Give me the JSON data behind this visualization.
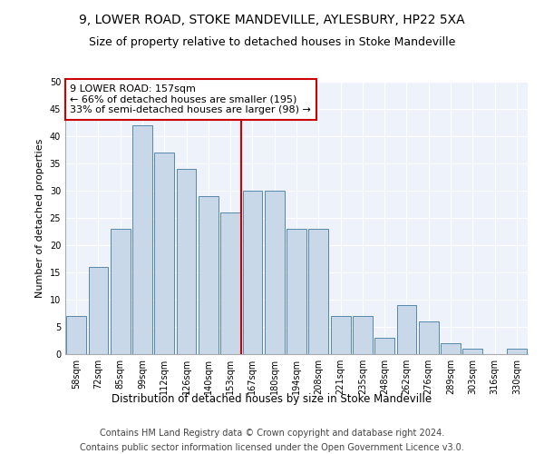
{
  "title_line1": "9, LOWER ROAD, STOKE MANDEVILLE, AYLESBURY, HP22 5XA",
  "title_line2": "Size of property relative to detached houses in Stoke Mandeville",
  "xlabel": "Distribution of detached houses by size in Stoke Mandeville",
  "ylabel": "Number of detached properties",
  "categories": [
    "58sqm",
    "72sqm",
    "85sqm",
    "99sqm",
    "112sqm",
    "126sqm",
    "140sqm",
    "153sqm",
    "167sqm",
    "180sqm",
    "194sqm",
    "208sqm",
    "221sqm",
    "235sqm",
    "248sqm",
    "262sqm",
    "276sqm",
    "289sqm",
    "303sqm",
    "316sqm",
    "330sqm"
  ],
  "values": [
    7,
    16,
    23,
    42,
    37,
    34,
    29,
    26,
    30,
    30,
    23,
    23,
    7,
    7,
    3,
    9,
    6,
    2,
    1,
    0,
    1
  ],
  "bar_color": "#c8d8e8",
  "bar_edge_color": "#5588aa",
  "marker_index": 7,
  "vline_color": "#cc0000",
  "annotation_text": "9 LOWER ROAD: 157sqm\n← 66% of detached houses are smaller (195)\n33% of semi-detached houses are larger (98) →",
  "annotation_box_color": "#ffffff",
  "annotation_box_edge": "#cc0000",
  "ylim": [
    0,
    50
  ],
  "yticks": [
    0,
    5,
    10,
    15,
    20,
    25,
    30,
    35,
    40,
    45,
    50
  ],
  "background_color": "#eef2fb",
  "grid_color": "#ffffff",
  "footer_line1": "Contains HM Land Registry data © Crown copyright and database right 2024.",
  "footer_line2": "Contains public sector information licensed under the Open Government Licence v3.0.",
  "title_fontsize": 10,
  "subtitle_fontsize": 9,
  "ylabel_fontsize": 8,
  "xlabel_fontsize": 8.5,
  "tick_fontsize": 7,
  "footer_fontsize": 7,
  "annotation_fontsize": 8
}
